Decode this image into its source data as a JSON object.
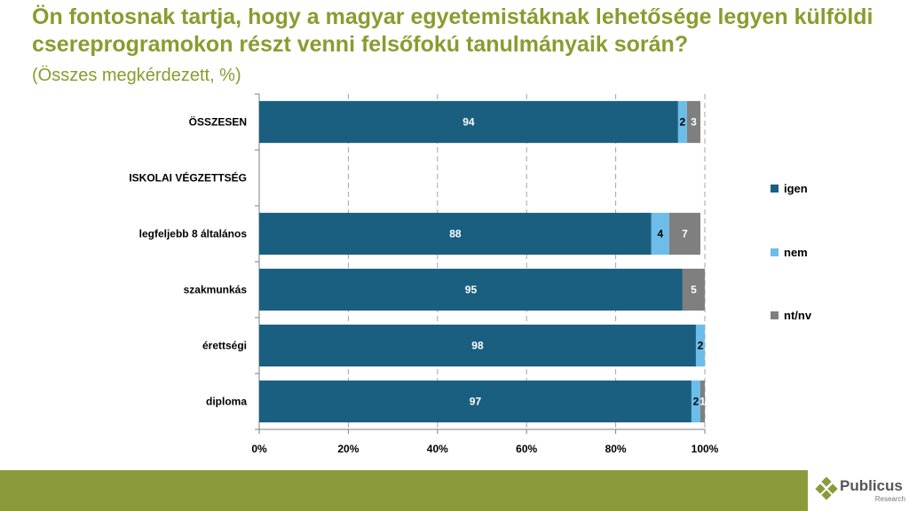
{
  "header": {
    "title": "Ön fontosnak tartja, hogy a magyar egyetemistáknak lehetősége legyen külföldi csereprogramokon részt venni felsőfokú tanulmányaik során?",
    "subtitle": "(Összes megkérdezett, %)"
  },
  "chart_data": {
    "type": "bar",
    "orientation": "horizontal",
    "stacked": true,
    "categories": [
      "ÖSSZESEN",
      "ISKOLAI VÉGZETTSÉG",
      "legfeljebb 8 általános",
      "szakmunkás",
      "érettségi",
      "diploma"
    ],
    "series": [
      {
        "name": "igen",
        "color": "#1b5f80",
        "label_color": "#ffffff",
        "values": [
          94,
          null,
          88,
          95,
          98,
          97
        ]
      },
      {
        "name": "nem",
        "color": "#6cbde9",
        "label_color": "#000000",
        "values": [
          2,
          null,
          4,
          0,
          2,
          2
        ]
      },
      {
        "name": "nt/nv",
        "color": "#7f7f7f",
        "label_color": "#ffffff",
        "values": [
          3,
          null,
          7,
          5,
          0,
          1
        ]
      }
    ],
    "xlim": [
      0,
      100
    ],
    "x_ticks": [
      "0%",
      "20%",
      "40%",
      "60%",
      "80%",
      "100%"
    ],
    "grid": true,
    "legend_position": "right"
  },
  "footer": {
    "logo_text": "Publicus",
    "logo_sub": "Research",
    "band_color": "#8b9b3a"
  }
}
